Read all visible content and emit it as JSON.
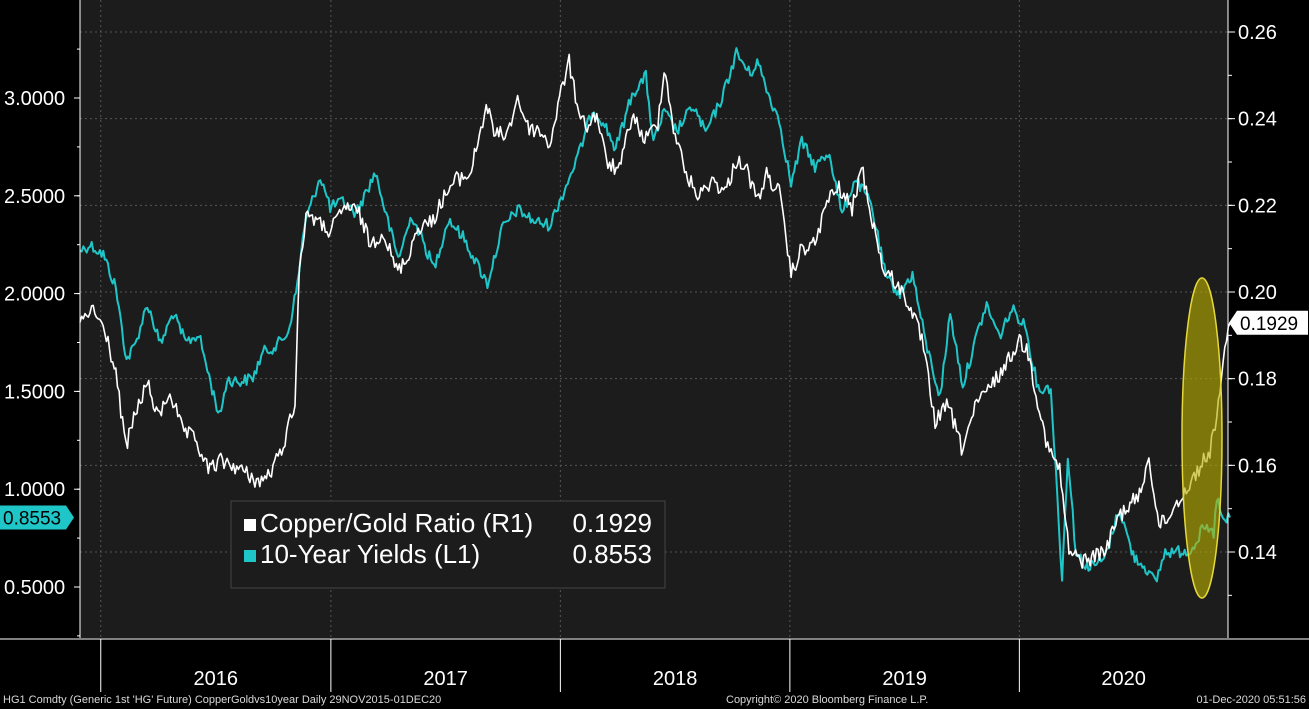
{
  "chart_data": {
    "type": "line",
    "x_range": [
      "2015-11-29",
      "2020-12-01"
    ],
    "left_axis": {
      "ticks": [
        "0.5000",
        "1.0000",
        "1.5000",
        "2.0000",
        "2.5000",
        "3.0000"
      ],
      "range": [
        0.25,
        3.5
      ]
    },
    "right_axis": {
      "ticks": [
        "0.14",
        "0.16",
        "0.18",
        "0.20",
        "0.22",
        "0.24",
        "0.26"
      ],
      "range": [
        0.12,
        0.265
      ]
    },
    "x_ticks": [
      "2016",
      "2017",
      "2018",
      "2019",
      "2020"
    ],
    "legend": [
      {
        "label": "Copper/Gold Ratio (R1)",
        "value": "0.1929",
        "color": "#ffffff"
      },
      {
        "label": "10-Year Yields (L1)",
        "value": "0.8553",
        "color": "#1fc6c8"
      }
    ],
    "last_value_tags": {
      "left": "0.8553",
      "right": "0.1929"
    },
    "series": [
      {
        "name": "Copper/Gold Ratio (R1)",
        "axis": "right",
        "color": "#ffffff",
        "points": [
          [
            "2015-11-29",
            0.193
          ],
          [
            "2015-12-20",
            0.196
          ],
          [
            "2016-01-10",
            0.19
          ],
          [
            "2016-01-25",
            0.181
          ],
          [
            "2016-02-10",
            0.164
          ],
          [
            "2016-02-25",
            0.172
          ],
          [
            "2016-03-15",
            0.179
          ],
          [
            "2016-04-01",
            0.171
          ],
          [
            "2016-04-20",
            0.177
          ],
          [
            "2016-05-10",
            0.168
          ],
          [
            "2016-05-30",
            0.166
          ],
          [
            "2016-06-20",
            0.159
          ],
          [
            "2016-07-10",
            0.161
          ],
          [
            "2016-07-30",
            0.16
          ],
          [
            "2016-08-20",
            0.158
          ],
          [
            "2016-09-10",
            0.156
          ],
          [
            "2016-10-01",
            0.159
          ],
          [
            "2016-10-20",
            0.166
          ],
          [
            "2016-11-05",
            0.175
          ],
          [
            "2016-11-12",
            0.206
          ],
          [
            "2016-11-25",
            0.219
          ],
          [
            "2016-12-10",
            0.216
          ],
          [
            "2016-12-31",
            0.214
          ],
          [
            "2017-01-25",
            0.22
          ],
          [
            "2017-02-15",
            0.218
          ],
          [
            "2017-03-05",
            0.211
          ],
          [
            "2017-03-25",
            0.214
          ],
          [
            "2017-04-15",
            0.205
          ],
          [
            "2017-04-30",
            0.207
          ],
          [
            "2017-05-20",
            0.215
          ],
          [
            "2017-06-10",
            0.216
          ],
          [
            "2017-06-30",
            0.222
          ],
          [
            "2017-07-20",
            0.226
          ],
          [
            "2017-08-10",
            0.227
          ],
          [
            "2017-08-25",
            0.236
          ],
          [
            "2017-09-05",
            0.243
          ],
          [
            "2017-09-20",
            0.236
          ],
          [
            "2017-10-10",
            0.237
          ],
          [
            "2017-10-25",
            0.245
          ],
          [
            "2017-11-10",
            0.238
          ],
          [
            "2017-11-30",
            0.237
          ],
          [
            "2017-12-15",
            0.234
          ],
          [
            "2018-01-05",
            0.248
          ],
          [
            "2018-01-15",
            0.253
          ],
          [
            "2018-01-25",
            0.245
          ],
          [
            "2018-02-10",
            0.238
          ],
          [
            "2018-02-28",
            0.241
          ],
          [
            "2018-03-15",
            0.23
          ],
          [
            "2018-04-05",
            0.228
          ],
          [
            "2018-04-25",
            0.241
          ],
          [
            "2018-05-15",
            0.235
          ],
          [
            "2018-06-05",
            0.239
          ],
          [
            "2018-06-15",
            0.252
          ],
          [
            "2018-06-30",
            0.238
          ],
          [
            "2018-07-20",
            0.227
          ],
          [
            "2018-08-10",
            0.222
          ],
          [
            "2018-08-30",
            0.226
          ],
          [
            "2018-09-20",
            0.223
          ],
          [
            "2018-10-10",
            0.231
          ],
          [
            "2018-10-25",
            0.228
          ],
          [
            "2018-11-10",
            0.221
          ],
          [
            "2018-11-25",
            0.227
          ],
          [
            "2018-12-15",
            0.223
          ],
          [
            "2019-01-03",
            0.204
          ],
          [
            "2019-01-20",
            0.21
          ],
          [
            "2019-02-10",
            0.211
          ],
          [
            "2019-03-01",
            0.221
          ],
          [
            "2019-03-20",
            0.224
          ],
          [
            "2019-04-10",
            0.219
          ],
          [
            "2019-04-25",
            0.229
          ],
          [
            "2019-05-10",
            0.218
          ],
          [
            "2019-05-30",
            0.205
          ],
          [
            "2019-06-20",
            0.202
          ],
          [
            "2019-07-10",
            0.197
          ],
          [
            "2019-07-30",
            0.189
          ],
          [
            "2019-08-20",
            0.17
          ],
          [
            "2019-09-10",
            0.174
          ],
          [
            "2019-10-01",
            0.164
          ],
          [
            "2019-10-25",
            0.174
          ],
          [
            "2019-11-15",
            0.178
          ],
          [
            "2019-12-10",
            0.183
          ],
          [
            "2020-01-01",
            0.189
          ],
          [
            "2020-01-15",
            0.186
          ],
          [
            "2020-01-30",
            0.175
          ],
          [
            "2020-02-15",
            0.164
          ],
          [
            "2020-03-05",
            0.159
          ],
          [
            "2020-03-20",
            0.14
          ],
          [
            "2020-04-10",
            0.138
          ],
          [
            "2020-04-30",
            0.139
          ],
          [
            "2020-05-20",
            0.141
          ],
          [
            "2020-06-05",
            0.148
          ],
          [
            "2020-06-25",
            0.151
          ],
          [
            "2020-07-10",
            0.153
          ],
          [
            "2020-07-25",
            0.162
          ],
          [
            "2020-08-10",
            0.146
          ],
          [
            "2020-08-25",
            0.148
          ],
          [
            "2020-09-10",
            0.152
          ],
          [
            "2020-09-30",
            0.156
          ],
          [
            "2020-10-15",
            0.16
          ],
          [
            "2020-10-30",
            0.163
          ],
          [
            "2020-11-10",
            0.172
          ],
          [
            "2020-11-20",
            0.183
          ],
          [
            "2020-12-01",
            0.1929
          ]
        ]
      },
      {
        "name": "10-Year Yields (L1)",
        "axis": "left",
        "color": "#1fc6c8",
        "points": [
          [
            "2015-11-29",
            2.22
          ],
          [
            "2015-12-15",
            2.25
          ],
          [
            "2016-01-05",
            2.2
          ],
          [
            "2016-01-25",
            2.03
          ],
          [
            "2016-02-11",
            1.66
          ],
          [
            "2016-02-25",
            1.74
          ],
          [
            "2016-03-15",
            1.95
          ],
          [
            "2016-04-05",
            1.74
          ],
          [
            "2016-04-25",
            1.9
          ],
          [
            "2016-05-15",
            1.75
          ],
          [
            "2016-06-05",
            1.79
          ],
          [
            "2016-06-24",
            1.54
          ],
          [
            "2016-07-08",
            1.37
          ],
          [
            "2016-07-20",
            1.56
          ],
          [
            "2016-08-10",
            1.55
          ],
          [
            "2016-08-30",
            1.57
          ],
          [
            "2016-09-15",
            1.7
          ],
          [
            "2016-10-05",
            1.73
          ],
          [
            "2016-10-25",
            1.8
          ],
          [
            "2016-11-09",
            2.05
          ],
          [
            "2016-11-20",
            2.35
          ],
          [
            "2016-12-15",
            2.6
          ],
          [
            "2016-12-31",
            2.44
          ],
          [
            "2017-01-20",
            2.47
          ],
          [
            "2017-02-10",
            2.41
          ],
          [
            "2017-03-13",
            2.62
          ],
          [
            "2017-03-30",
            2.4
          ],
          [
            "2017-04-18",
            2.18
          ],
          [
            "2017-05-10",
            2.4
          ],
          [
            "2017-06-14",
            2.13
          ],
          [
            "2017-07-07",
            2.38
          ],
          [
            "2017-07-30",
            2.29
          ],
          [
            "2017-09-07",
            2.05
          ],
          [
            "2017-09-30",
            2.33
          ],
          [
            "2017-10-25",
            2.43
          ],
          [
            "2017-11-20",
            2.37
          ],
          [
            "2017-12-15",
            2.35
          ],
          [
            "2018-01-10",
            2.55
          ],
          [
            "2018-01-31",
            2.72
          ],
          [
            "2018-02-21",
            2.94
          ],
          [
            "2018-03-10",
            2.88
          ],
          [
            "2018-03-30",
            2.74
          ],
          [
            "2018-04-25",
            3.02
          ],
          [
            "2018-05-17",
            3.11
          ],
          [
            "2018-05-29",
            2.77
          ],
          [
            "2018-06-15",
            2.93
          ],
          [
            "2018-07-05",
            2.83
          ],
          [
            "2018-07-31",
            2.96
          ],
          [
            "2018-08-20",
            2.82
          ],
          [
            "2018-09-15",
            3.0
          ],
          [
            "2018-10-08",
            3.23
          ],
          [
            "2018-10-30",
            3.12
          ],
          [
            "2018-11-10",
            3.19
          ],
          [
            "2018-11-30",
            3.0
          ],
          [
            "2018-12-15",
            2.89
          ],
          [
            "2019-01-03",
            2.56
          ],
          [
            "2019-01-20",
            2.78
          ],
          [
            "2019-02-10",
            2.65
          ],
          [
            "2019-03-05",
            2.72
          ],
          [
            "2019-03-25",
            2.4
          ],
          [
            "2019-04-15",
            2.59
          ],
          [
            "2019-05-10",
            2.46
          ],
          [
            "2019-06-03",
            2.08
          ],
          [
            "2019-06-25",
            2.0
          ],
          [
            "2019-07-15",
            2.1
          ],
          [
            "2019-08-05",
            1.75
          ],
          [
            "2019-08-28",
            1.47
          ],
          [
            "2019-09-13",
            1.9
          ],
          [
            "2019-10-03",
            1.53
          ],
          [
            "2019-10-30",
            1.84
          ],
          [
            "2019-11-10",
            1.94
          ],
          [
            "2019-11-30",
            1.78
          ],
          [
            "2019-12-20",
            1.92
          ],
          [
            "2020-01-10",
            1.84
          ],
          [
            "2020-01-31",
            1.51
          ],
          [
            "2020-02-20",
            1.52
          ],
          [
            "2020-03-09",
            0.54
          ],
          [
            "2020-03-18",
            1.18
          ],
          [
            "2020-03-31",
            0.67
          ],
          [
            "2020-04-20",
            0.6
          ],
          [
            "2020-05-15",
            0.64
          ],
          [
            "2020-06-08",
            0.9
          ],
          [
            "2020-06-30",
            0.66
          ],
          [
            "2020-07-20",
            0.6
          ],
          [
            "2020-08-04",
            0.52
          ],
          [
            "2020-08-20",
            0.68
          ],
          [
            "2020-09-10",
            0.68
          ],
          [
            "2020-09-30",
            0.69
          ],
          [
            "2020-10-20",
            0.8
          ],
          [
            "2020-11-05",
            0.77
          ],
          [
            "2020-11-10",
            0.96
          ],
          [
            "2020-11-20",
            0.83
          ],
          [
            "2020-12-01",
            0.8553
          ]
        ]
      }
    ]
  },
  "footer": {
    "left": "HG1 Comdty (Generic 1st 'HG' Future) CopperGoldvs10year  Daily 29NOV2015-01DEC20",
    "center": "Copyright© 2020 Bloomberg Finance L.P.",
    "right": "01-Dec-2020 05:51:56"
  }
}
